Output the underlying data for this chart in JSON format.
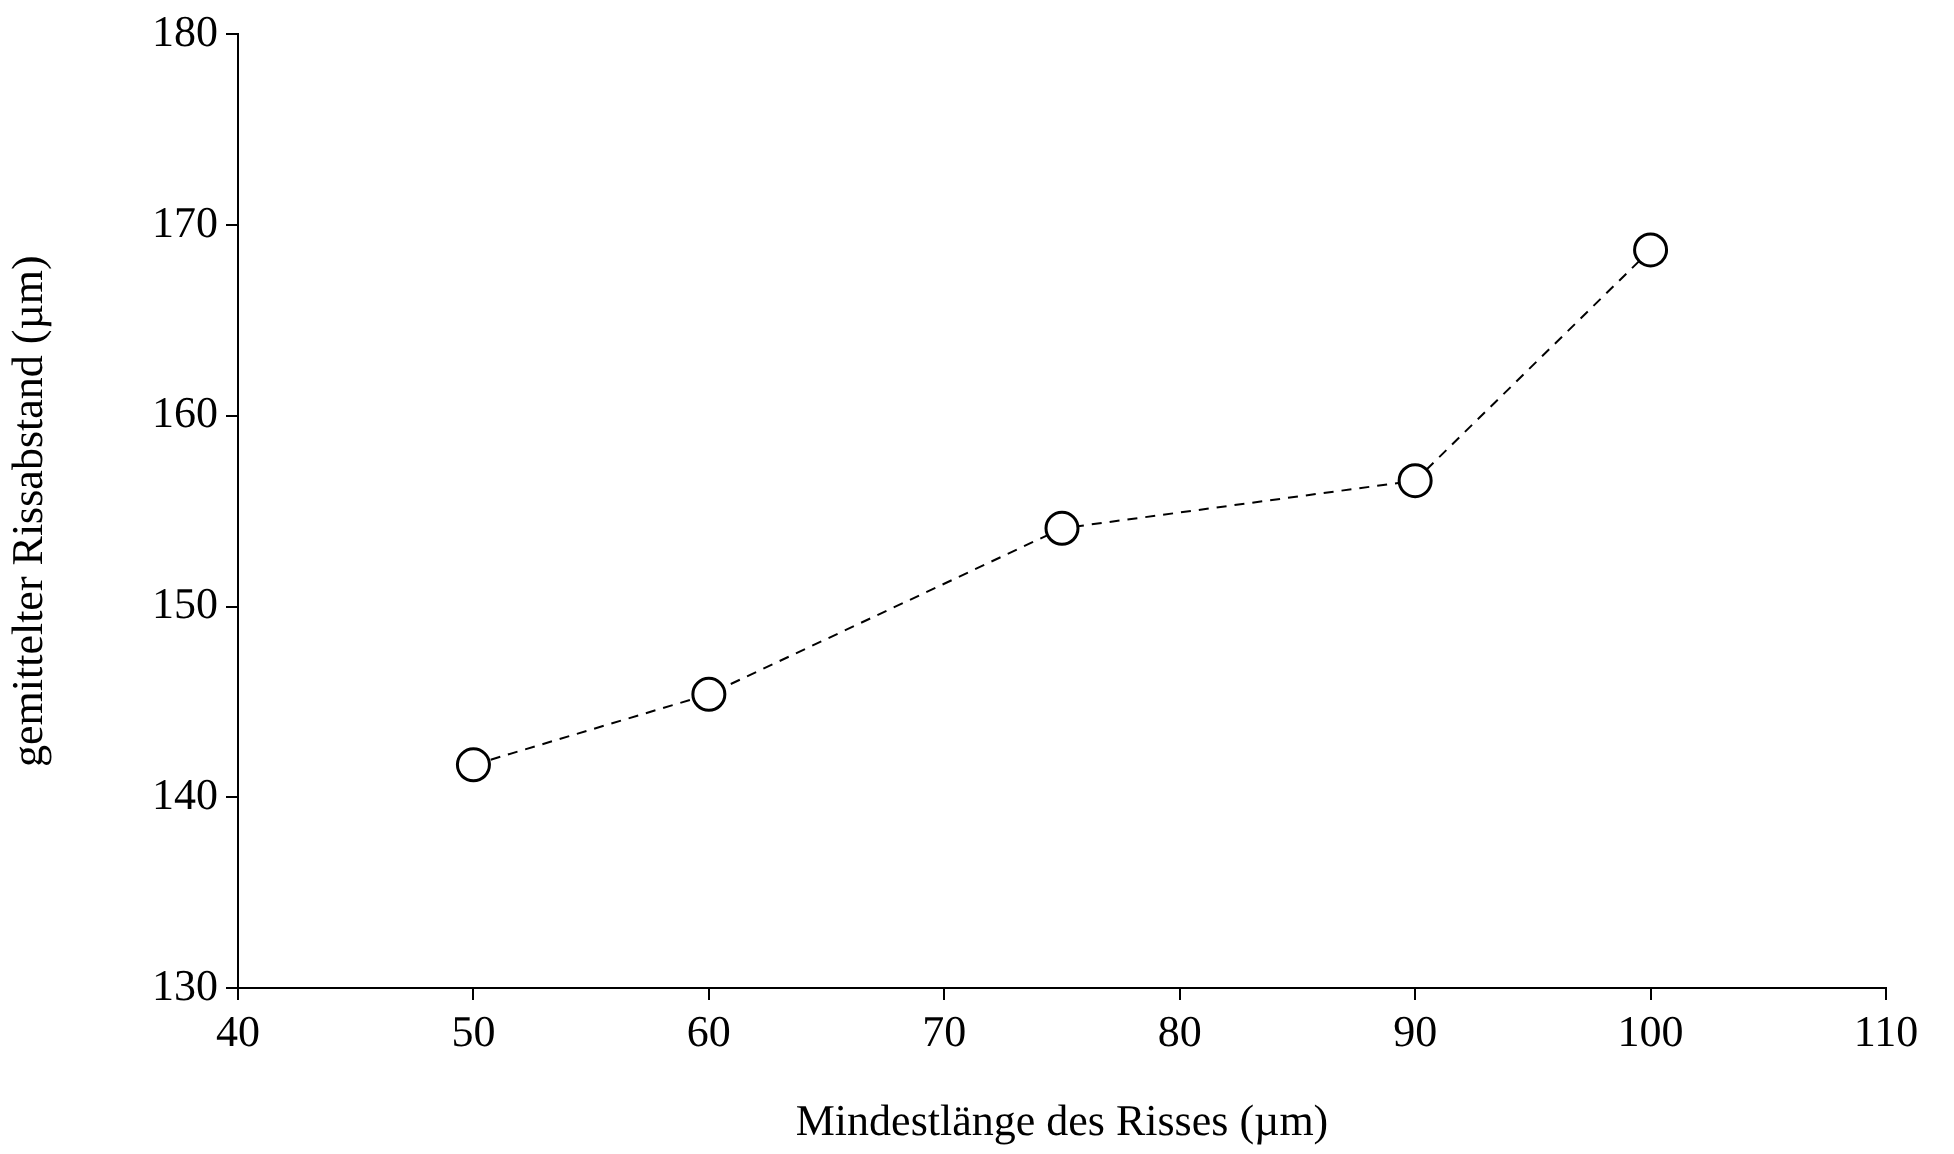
{
  "chart_data": {
    "type": "line",
    "xlabel": "Mindestlänge des Risses (µm)",
    "ylabel": "gemittelter Rissabstand (µm)",
    "x": [
      50,
      60,
      75,
      90,
      100
    ],
    "series": [
      {
        "color": "#000000",
        "values": [
          141.7,
          145.4,
          154.1,
          156.6,
          168.7
        ]
      }
    ],
    "xlim": [
      40,
      110
    ],
    "xticks": [
      40,
      50,
      60,
      70,
      80,
      90,
      100,
      110
    ],
    "ylim": [
      130,
      180
    ],
    "yticks": [
      130,
      140,
      150,
      160,
      170,
      180
    ],
    "marker": "circle",
    "line_style": "dashed",
    "legend": false
  }
}
